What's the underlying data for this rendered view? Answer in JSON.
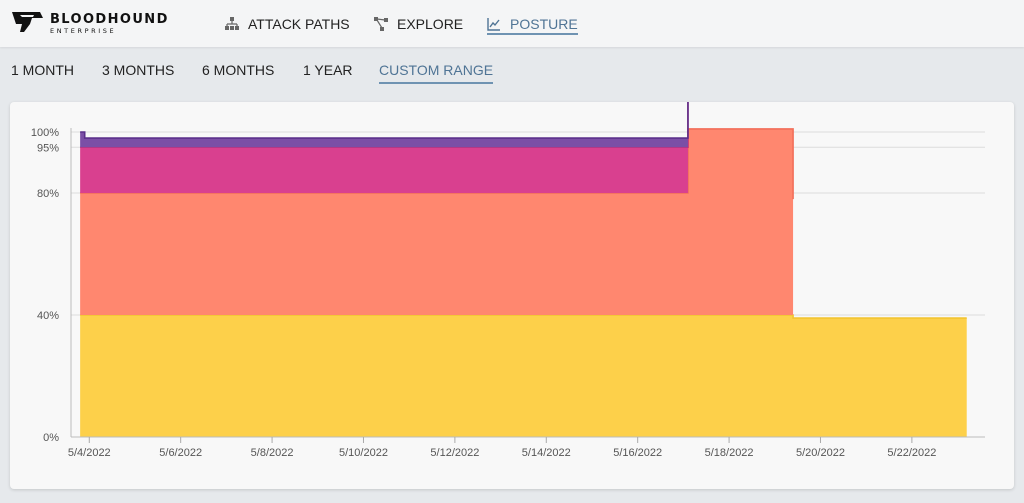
{
  "brand": {
    "name": "BLOODHOUND",
    "subtitle": "ENTERPRISE"
  },
  "nav": [
    {
      "label": "ATTACK PATHS",
      "icon": "hierarchy-icon",
      "active": false
    },
    {
      "label": "EXPLORE",
      "icon": "graph-nodes-icon",
      "active": false
    },
    {
      "label": "POSTURE",
      "icon": "line-chart-icon",
      "active": true
    }
  ],
  "ranges": [
    {
      "label": "1 MONTH",
      "active": false
    },
    {
      "label": "3 MONTHS",
      "active": false
    },
    {
      "label": "6 MONTHS",
      "active": false
    },
    {
      "label": "1 YEAR",
      "active": false
    },
    {
      "label": "CUSTOM RANGE",
      "active": true
    }
  ],
  "colors": {
    "accent": "#4f7495",
    "series_top": "#7b4fa6",
    "series_second": "#d9408f",
    "series_third": "#ff876f",
    "series_bottom": "#fdd04a"
  },
  "chart_data": {
    "type": "area",
    "stacked": true,
    "step": true,
    "title": "",
    "xlabel": "",
    "ylabel": "",
    "ylim": [
      0,
      100
    ],
    "y_ticks": [
      "0%",
      "40%",
      "80%",
      "95%",
      "100%"
    ],
    "y_tick_values": [
      0,
      40,
      80,
      95,
      100
    ],
    "x_ticks": [
      "5/4/2022",
      "5/6/2022",
      "5/8/2022",
      "5/10/2022",
      "5/12/2022",
      "5/14/2022",
      "5/16/2022",
      "5/18/2022",
      "5/20/2022",
      "5/22/2022"
    ],
    "x_tick_values": [
      4,
      6,
      8,
      10,
      12,
      14,
      16,
      18,
      20,
      22
    ],
    "xlim": [
      3.6,
      23.6
    ],
    "grid": true,
    "series": [
      {
        "color": "#fdd04a",
        "stroke": "#f2c430",
        "points": [
          [
            3.8,
            40
          ],
          [
            19.4,
            40
          ],
          [
            19.4,
            39
          ],
          [
            23.2,
            39
          ]
        ]
      },
      {
        "color": "#ff876f",
        "stroke": "#f26f5a",
        "points": [
          [
            3.8,
            40
          ],
          [
            17.1,
            40
          ],
          [
            17.1,
            61
          ],
          [
            19.4,
            61
          ],
          [
            19.4,
            39
          ]
        ]
      },
      {
        "color": "#d9408f",
        "stroke": "#c4307a",
        "points": [
          [
            3.8,
            15
          ],
          [
            17.1,
            15
          ]
        ]
      },
      {
        "color": "#7b4fa6",
        "stroke": "#5a2f8a",
        "points": [
          [
            3.8,
            5
          ],
          [
            3.9,
            5
          ],
          [
            3.9,
            3
          ],
          [
            17.1,
            3
          ]
        ]
      }
    ]
  }
}
